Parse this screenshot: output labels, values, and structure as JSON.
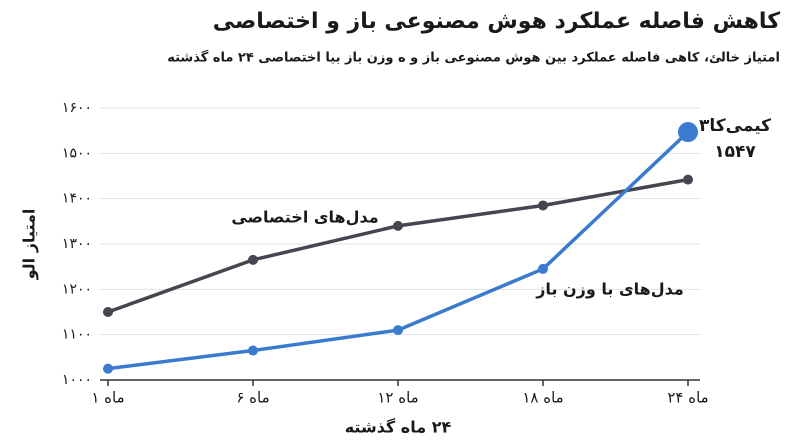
{
  "chart_data": {
    "type": "line",
    "title": "کاهش فاصله عملکرد هوش مصنوعی باز و اختصاصی",
    "subtitle": "امتیاز خالئ، کاهی فاصله عملکرد بین هوش مصنوعی باز و ه وزن باز بیا اختصاصی ۲۴ ماه گذشته",
    "x_label": "۲۴ ماه گذشته",
    "y_label": "امتیاز الو",
    "categories": [
      "ماه ۱",
      "ماه ۶",
      "ماه ۱۲",
      "ماه ۱۸",
      "ماه ۲۴"
    ],
    "series": [
      {
        "name": "مدل‌های اختصاصی",
        "color": "#45464f",
        "values": [
          1150,
          1265,
          1340,
          1385,
          1442
        ]
      },
      {
        "name": "مدل‌های با وزن باز",
        "color": "#3a7bd0",
        "values": [
          1025,
          1065,
          1110,
          1245,
          1547
        ],
        "value_labels": [
          null,
          null,
          null,
          null,
          "۱۵۴۷"
        ]
      }
    ],
    "annotation": "کیمی‌کا۳",
    "ylim": [
      1000,
      1600
    ],
    "yticks": [
      {
        "value": 1000,
        "label": "۱۰۰۰"
      },
      {
        "value": 1100,
        "label": "۱۱۰۰"
      },
      {
        "value": 1200,
        "label": "۱۲۰۰"
      },
      {
        "value": 1300,
        "label": "۱۳۰۰"
      },
      {
        "value": 1400,
        "label": "۱۴۰۰"
      },
      {
        "value": 1500,
        "label": "۱۵۰۰"
      },
      {
        "value": 1600,
        "label": "۱۶۰۰"
      }
    ],
    "grid": true
  }
}
